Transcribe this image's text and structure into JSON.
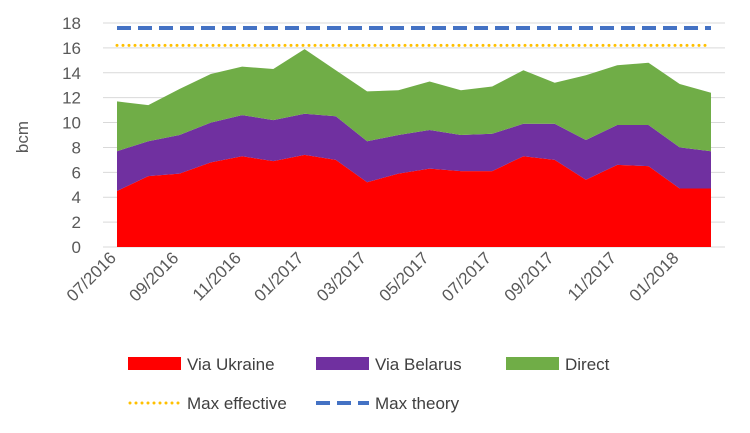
{
  "chart_data": {
    "type": "area",
    "ylabel": "bcm",
    "xlabel": "",
    "ylim": [
      0,
      18
    ],
    "yticks": [
      0,
      2,
      4,
      6,
      8,
      10,
      12,
      14,
      16,
      18
    ],
    "grid": "horizontal",
    "legend_position": "bottom",
    "x": [
      "07/2016",
      "08/2016",
      "09/2016",
      "10/2016",
      "11/2016",
      "12/2016",
      "01/2017",
      "02/2017",
      "03/2017",
      "04/2017",
      "05/2017",
      "06/2017",
      "07/2017",
      "08/2017",
      "09/2017",
      "10/2017",
      "11/2017",
      "12/2017",
      "01/2018",
      "02/2018"
    ],
    "x_tick_labels": [
      "07/2016",
      "09/2016",
      "11/2016",
      "01/2017",
      "03/2017",
      "05/2017",
      "07/2017",
      "09/2017",
      "11/2017",
      "01/2018"
    ],
    "stack_series": [
      {
        "name": "Via Ukraine",
        "color": "#ff0000",
        "values": [
          4.5,
          5.7,
          5.9,
          6.8,
          7.3,
          6.9,
          7.4,
          7.0,
          5.2,
          5.9,
          6.3,
          6.1,
          6.1,
          7.3,
          7.0,
          5.4,
          6.6,
          6.5,
          4.7,
          4.7
        ]
      },
      {
        "name": "Via Belarus",
        "color": "#7030a0",
        "values": [
          3.2,
          2.8,
          3.1,
          3.2,
          3.3,
          3.3,
          3.3,
          3.5,
          3.3,
          3.1,
          3.1,
          2.9,
          3.0,
          2.6,
          2.9,
          3.2,
          3.2,
          3.3,
          3.3,
          3.0
        ]
      },
      {
        "name": "Direct",
        "color": "#70ad47",
        "values": [
          4.0,
          2.9,
          3.7,
          3.9,
          3.9,
          4.1,
          5.2,
          3.7,
          4.0,
          3.6,
          3.9,
          3.6,
          3.8,
          4.3,
          3.3,
          5.2,
          4.8,
          5.0,
          5.1,
          4.7
        ]
      }
    ],
    "line_series": [
      {
        "name": "Max effective",
        "color": "#ffc000",
        "style": "dotted",
        "value": 16.2
      },
      {
        "name": "Max theory",
        "color": "#4472c4",
        "style": "dashed",
        "value": 17.6
      }
    ]
  }
}
